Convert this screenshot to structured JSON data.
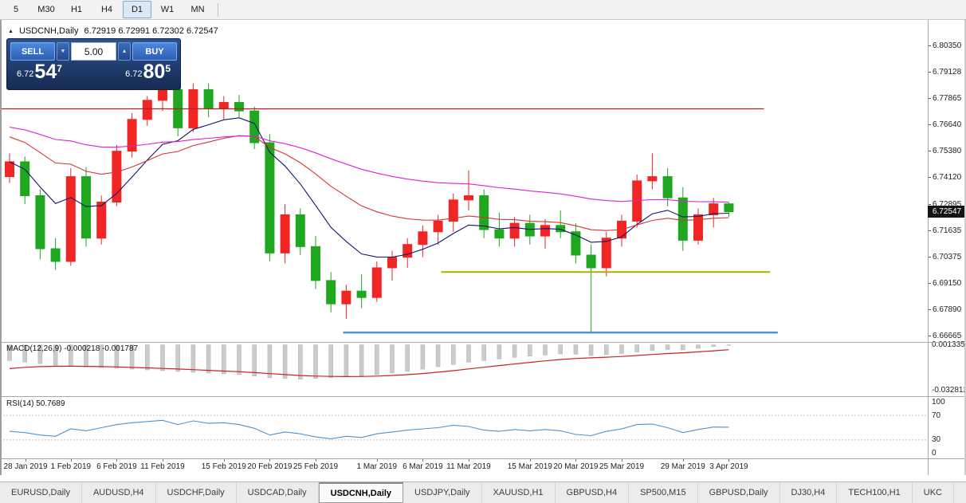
{
  "toolbar": {
    "timeframes": [
      {
        "label": "5",
        "active": false
      },
      {
        "label": "M30",
        "active": false
      },
      {
        "label": "H1",
        "active": false
      },
      {
        "label": "H4",
        "active": false
      },
      {
        "label": "D1",
        "active": true
      },
      {
        "label": "W1",
        "active": false
      },
      {
        "label": "MN",
        "active": false
      }
    ]
  },
  "chart": {
    "collapse_marker": "▲",
    "title": "USDCNH,Daily",
    "ohlc_text": "6.72919 6.72991 6.72302 6.72547",
    "trade_panel": {
      "sell_label": "SELL",
      "buy_label": "BUY",
      "volume": "5.00",
      "caret_down": "▼",
      "caret_up": "▲",
      "sell_price_prefix": "6.72",
      "sell_price_main": "54",
      "sell_price_sup": "7",
      "buy_price_prefix": "6.72",
      "buy_price_main": "80",
      "buy_price_sup": "5"
    },
    "price_scale": [
      "6.80350",
      "6.79128",
      "6.77865",
      "6.76640",
      "6.75380",
      "6.74120",
      "6.72895",
      "6.71635",
      "6.70375",
      "6.69150",
      "6.67890",
      "6.66665"
    ],
    "current_price": "6.72547",
    "dates": [
      "28 Jan 2019",
      "1 Feb 2019",
      "6 Feb 2019",
      "11 Feb 2019",
      "15 Feb 2019",
      "20 Feb 2019",
      "25 Feb 2019",
      "1 Mar 2019",
      "6 Mar 2019",
      "11 Mar 2019",
      "15 Mar 2019",
      "20 Mar 2019",
      "25 Mar 2019",
      "29 Mar 2019",
      "3 Apr 2019"
    ]
  },
  "macd_panel": {
    "label": "MACD(12,26,9) -0.000218 -0.001787",
    "scale_max": "0.001335",
    "scale_min": "-0.032812"
  },
  "rsi_panel": {
    "label": "RSI(14) 50.7689",
    "scale": [
      "100",
      "70",
      "30",
      "0"
    ]
  },
  "tabs": [
    {
      "label": "EURUSD,Daily",
      "active": false
    },
    {
      "label": "AUDUSD,H4",
      "active": false
    },
    {
      "label": "USDCHF,Daily",
      "active": false
    },
    {
      "label": "USDCAD,Daily",
      "active": false
    },
    {
      "label": "USDCNH,Daily",
      "active": true
    },
    {
      "label": "USDJPY,Daily",
      "active": false
    },
    {
      "label": "XAUUSD,H1",
      "active": false
    },
    {
      "label": "GBPUSD,H4",
      "active": false
    },
    {
      "label": "SP500,M15",
      "active": false
    },
    {
      "label": "GBPUSD,Daily",
      "active": false
    },
    {
      "label": "DJ30,H4",
      "active": false
    },
    {
      "label": "TECH100,H1",
      "active": false
    },
    {
      "label": "UKC",
      "active": false
    }
  ],
  "chart_data": {
    "type": "candlestick",
    "symbol": "USDCNH",
    "timeframe": "Daily",
    "y_range": [
      6.66665,
      6.8035
    ],
    "x_range": [
      "28 Jan 2019",
      "3 Apr 2019"
    ],
    "date_tick_indices": [
      0,
      4,
      7,
      10,
      14,
      17,
      20,
      24,
      27,
      30,
      34,
      37,
      40,
      44,
      47
    ],
    "candles": [
      [
        6.742,
        6.753,
        6.739,
        6.749
      ],
      [
        6.749,
        6.7515,
        6.729,
        6.733
      ],
      [
        6.733,
        6.736,
        6.703,
        6.708
      ],
      [
        6.708,
        6.713,
        6.698,
        6.702
      ],
      [
        6.702,
        6.746,
        6.7,
        6.742
      ],
      [
        6.742,
        6.7465,
        6.709,
        6.713
      ],
      [
        6.713,
        6.733,
        6.71,
        6.73
      ],
      [
        6.73,
        6.757,
        6.728,
        6.754
      ],
      [
        6.754,
        6.772,
        6.751,
        6.769
      ],
      [
        6.769,
        6.78,
        6.766,
        6.778
      ],
      [
        6.778,
        6.787,
        6.773,
        6.783
      ],
      [
        6.783,
        6.786,
        6.761,
        6.765
      ],
      [
        6.765,
        6.786,
        6.763,
        6.783
      ],
      [
        6.783,
        6.786,
        6.77,
        6.774
      ],
      [
        6.774,
        6.78,
        6.769,
        6.777
      ],
      [
        6.777,
        6.7805,
        6.77,
        6.773
      ],
      [
        6.773,
        6.775,
        6.755,
        6.758
      ],
      [
        6.758,
        6.762,
        6.702,
        6.706
      ],
      [
        6.706,
        6.729,
        6.701,
        6.724
      ],
      [
        6.724,
        6.727,
        6.705,
        6.709
      ],
      [
        6.709,
        6.714,
        6.689,
        6.693
      ],
      [
        6.693,
        6.697,
        6.678,
        6.682
      ],
      [
        6.682,
        6.691,
        6.675,
        6.688
      ],
      [
        6.688,
        6.696,
        6.68,
        6.685
      ],
      [
        6.685,
        6.702,
        6.683,
        6.699
      ],
      [
        6.699,
        6.707,
        6.693,
        6.704
      ],
      [
        6.704,
        6.713,
        6.699,
        6.71
      ],
      [
        6.71,
        6.719,
        6.704,
        6.716
      ],
      [
        6.716,
        6.724,
        6.71,
        6.721
      ],
      [
        6.721,
        6.734,
        6.716,
        6.731
      ],
      [
        6.731,
        6.745,
        6.726,
        6.733
      ],
      [
        6.733,
        6.736,
        6.713,
        6.717
      ],
      [
        6.717,
        6.725,
        6.709,
        6.713
      ],
      [
        6.713,
        6.723,
        6.709,
        6.72
      ],
      [
        6.72,
        6.724,
        6.71,
        6.714
      ],
      [
        6.714,
        6.722,
        6.708,
        6.719
      ],
      [
        6.719,
        6.726,
        6.713,
        6.716
      ],
      [
        6.716,
        6.72,
        6.701,
        6.705
      ],
      [
        6.705,
        6.71,
        6.668,
        6.699
      ],
      [
        6.699,
        6.716,
        6.695,
        6.713
      ],
      [
        6.713,
        6.724,
        6.709,
        6.721
      ],
      [
        6.721,
        6.743,
        6.718,
        6.74
      ],
      [
        6.74,
        6.753,
        6.736,
        6.742
      ],
      [
        6.742,
        6.746,
        6.728,
        6.732
      ],
      [
        6.732,
        6.737,
        6.707,
        6.712
      ],
      [
        6.712,
        6.727,
        6.71,
        6.724
      ],
      [
        6.724,
        6.732,
        6.718,
        6.7292
      ],
      [
        6.72919,
        6.72991,
        6.72302,
        6.72547
      ]
    ],
    "overlays": [
      {
        "name": "ma-fast",
        "estimated_period": 8,
        "seed": null,
        "color": "#14146e"
      },
      {
        "name": "ma-mid",
        "estimated_period": 20,
        "seed": 6.762,
        "color": "#d23535"
      },
      {
        "name": "ma-slow",
        "estimated_period": 50,
        "seed": 6.766,
        "color": "#e020d0"
      }
    ],
    "lines": [
      {
        "name": "resistance-line",
        "price": 6.774,
        "from_index": -0.6,
        "to_index": 49.3,
        "color": "#b22222",
        "width": 1.3
      },
      {
        "name": "support-line",
        "price": 6.697,
        "from_index": 28.2,
        "to_index": 49.7,
        "color": "#a9b400",
        "width": 2
      },
      {
        "name": "lower-support-line",
        "price": 6.6685,
        "from_index": 21.8,
        "to_index": 50.2,
        "color": "#4f94cd",
        "width": 2.5
      }
    ],
    "colors": {
      "up": "#f22525",
      "down": "#1fa81f",
      "macd_hist": "#cbcbcb",
      "macd_signal": "#cc2222",
      "rsi": "#4f94cd"
    },
    "indicators": {
      "macd": {
        "scale_max": 0.001335,
        "scale_min": -0.032812,
        "value": -0.000218,
        "signal": -0.001787,
        "histogram": [
          -0.01,
          -0.011,
          -0.012,
          -0.013,
          -0.0135,
          -0.014,
          -0.0145,
          -0.015,
          -0.0155,
          -0.016,
          -0.0165,
          -0.017,
          -0.0175,
          -0.018,
          -0.0185,
          -0.019,
          -0.02,
          -0.021,
          -0.0215,
          -0.022,
          -0.0215,
          -0.021,
          -0.0205,
          -0.02,
          -0.019,
          -0.018,
          -0.017,
          -0.0155,
          -0.014,
          -0.0125,
          -0.011,
          -0.01,
          -0.009,
          -0.008,
          -0.0072,
          -0.0065,
          -0.0058,
          -0.006,
          -0.0068,
          -0.0062,
          -0.0055,
          -0.0045,
          -0.0035,
          -0.003,
          -0.0032,
          -0.0022,
          -0.001,
          -0.000218
        ]
      },
      "rsi": {
        "period": 14,
        "value": 50.7689,
        "levels": [
          70,
          30
        ],
        "values": [
          44,
          42,
          38,
          36,
          48,
          45,
          50,
          55,
          58,
          60,
          62,
          55,
          61,
          57,
          58,
          55,
          49,
          38,
          43,
          40,
          35,
          32,
          36,
          34,
          40,
          43,
          46,
          48,
          50,
          54,
          52,
          46,
          44,
          47,
          45,
          47,
          45,
          39,
          37,
          44,
          48,
          55,
          56,
          50,
          42,
          47,
          51,
          50.77
        ]
      }
    }
  }
}
